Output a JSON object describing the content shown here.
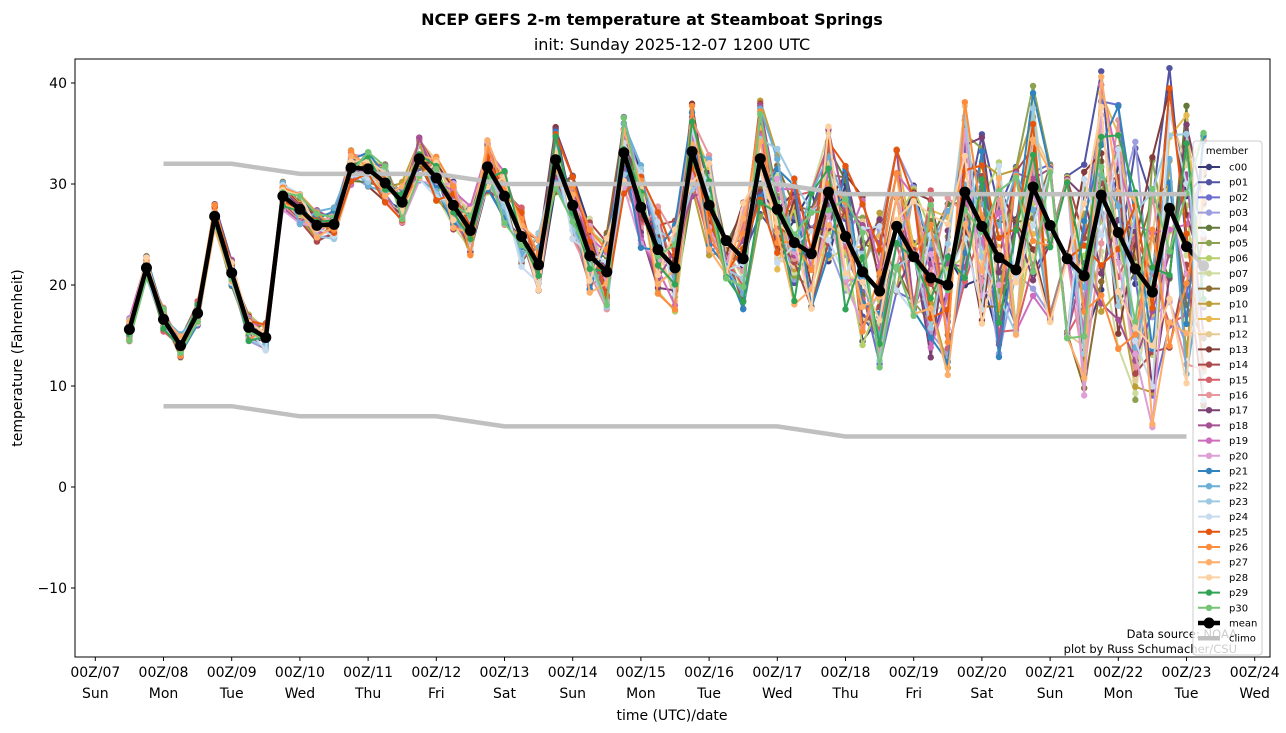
{
  "chart_data": {
    "type": "line",
    "title": "NCEP GEFS 2-m temperature at Steamboat Springs",
    "subtitle": "init: Sunday 2025-12-07 1200 UTC",
    "xlabel": "time (UTC)/date",
    "ylabel": "temperature (Fahrenheit)",
    "ylim": [
      -17,
      42.5
    ],
    "xlim_days": [
      0,
      17
    ],
    "yticks": [
      40,
      30,
      20,
      10,
      0,
      -10
    ],
    "ytick_labels": [
      "40",
      "30",
      "20",
      "10",
      "0",
      "−10"
    ],
    "xtick_labels": [
      {
        "time": "00Z/07",
        "day": "Sun"
      },
      {
        "time": "00Z/08",
        "day": "Mon"
      },
      {
        "time": "00Z/09",
        "day": "Tue"
      },
      {
        "time": "00Z/10",
        "day": "Wed"
      },
      {
        "time": "00Z/11",
        "day": "Thu"
      },
      {
        "time": "00Z/12",
        "day": "Fri"
      },
      {
        "time": "00Z/13",
        "day": "Sat"
      },
      {
        "time": "00Z/14",
        "day": "Sun"
      },
      {
        "time": "00Z/15",
        "day": "Mon"
      },
      {
        "time": "00Z/16",
        "day": "Tue"
      },
      {
        "time": "00Z/17",
        "day": "Wed"
      },
      {
        "time": "00Z/18",
        "day": "Thu"
      },
      {
        "time": "00Z/19",
        "day": "Fri"
      },
      {
        "time": "00Z/20",
        "day": "Sat"
      },
      {
        "time": "00Z/21",
        "day": "Sun"
      },
      {
        "time": "00Z/22",
        "day": "Mon"
      },
      {
        "time": "00Z/23",
        "day": "Tue"
      },
      {
        "time": "00Z/24",
        "day": "Wed"
      }
    ],
    "time_step_hours": 6,
    "first_valid": "12Z/07",
    "grid": false,
    "legend": {
      "title": "member",
      "placement": "right"
    },
    "mean": {
      "name": "mean",
      "color": "#000000",
      "values": [
        15.6,
        21.7,
        16.6,
        14.0,
        17.2,
        26.8,
        21.2,
        15.8,
        14.8,
        28.8,
        27.5,
        25.9,
        26.0,
        31.6,
        31.5,
        30.1,
        28.2,
        32.5,
        30.6,
        27.9,
        25.4,
        31.7,
        28.8,
        24.8,
        22.0,
        32.4,
        27.9,
        22.9,
        21.3,
        33.1,
        27.7,
        23.5,
        21.7,
        33.2,
        27.9,
        24.4,
        22.6,
        32.5,
        27.5,
        24.2,
        23.1,
        29.2,
        24.8,
        21.3,
        19.4,
        25.8,
        22.8,
        20.7,
        20.0,
        29.2,
        25.8,
        22.7,
        21.5,
        29.7,
        25.9,
        22.6,
        20.9,
        28.9,
        25.2,
        21.6,
        19.3,
        27.6,
        23.8,
        21.9
      ]
    },
    "climo": {
      "name": "climo",
      "color": "#c0c0c0",
      "days": [
        1,
        2,
        3,
        5,
        6,
        10,
        11,
        16
      ],
      "high": [
        32,
        32,
        31,
        31,
        30,
        30,
        29,
        29
      ],
      "low": [
        8,
        8,
        7,
        7,
        6,
        6,
        5,
        5
      ]
    },
    "members": [
      {
        "name": "c00",
        "color": "#393b79"
      },
      {
        "name": "p01",
        "color": "#5254a3"
      },
      {
        "name": "p02",
        "color": "#6b6ecf"
      },
      {
        "name": "p03",
        "color": "#9c9ede"
      },
      {
        "name": "p04",
        "color": "#637939"
      },
      {
        "name": "p05",
        "color": "#8ca252"
      },
      {
        "name": "p06",
        "color": "#b5cf6b"
      },
      {
        "name": "p07",
        "color": "#cedb9c"
      },
      {
        "name": "p09",
        "color": "#8c6d31"
      },
      {
        "name": "p10",
        "color": "#bd9e39"
      },
      {
        "name": "p11",
        "color": "#e7ba52"
      },
      {
        "name": "p12",
        "color": "#e7cb94"
      },
      {
        "name": "p13",
        "color": "#843c39"
      },
      {
        "name": "p14",
        "color": "#ad494a"
      },
      {
        "name": "p15",
        "color": "#d6616b"
      },
      {
        "name": "p16",
        "color": "#e7969c"
      },
      {
        "name": "p17",
        "color": "#7b4173"
      },
      {
        "name": "p18",
        "color": "#a55194"
      },
      {
        "name": "p19",
        "color": "#ce6dbd"
      },
      {
        "name": "p20",
        "color": "#de9ed6"
      },
      {
        "name": "p21",
        "color": "#3182bd"
      },
      {
        "name": "p22",
        "color": "#6baed6"
      },
      {
        "name": "p23",
        "color": "#9ecae1"
      },
      {
        "name": "p24",
        "color": "#c6dbef"
      },
      {
        "name": "p25",
        "color": "#e6550d"
      },
      {
        "name": "p26",
        "color": "#fd8d3c"
      },
      {
        "name": "p27",
        "color": "#fdae6b"
      },
      {
        "name": "p28",
        "color": "#fdd0a2"
      },
      {
        "name": "p29",
        "color": "#31a354"
      },
      {
        "name": "p30",
        "color": "#74c476"
      }
    ],
    "member_spread_note": "individual member traces approximated around mean",
    "credits": [
      "Data source: NOAA",
      "plot by Russ Schumacher/CSU"
    ]
  }
}
